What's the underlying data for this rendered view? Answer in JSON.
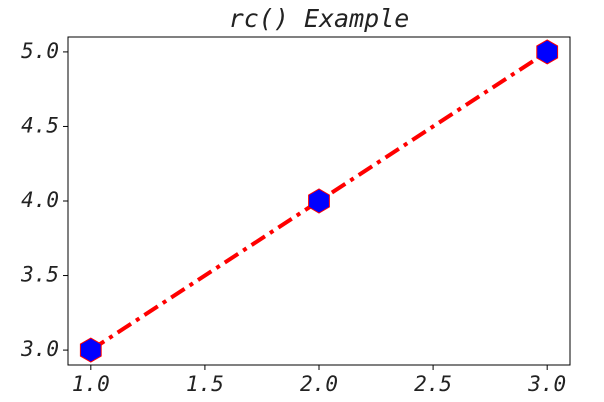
{
  "chart_data": {
    "type": "line",
    "title": "rc() Example",
    "x": [
      1,
      2,
      3
    ],
    "series": [
      {
        "values": [
          3,
          4,
          5
        ],
        "color": "#ff0000",
        "marker_color": "#0000ff",
        "linestyle": "dashdot"
      }
    ],
    "xlim": [
      0.9,
      3.1
    ],
    "ylim": [
      2.9,
      5.1
    ],
    "xticks": [
      {
        "value": 1,
        "label": "1.0"
      },
      {
        "value": 1.5,
        "label": "1.5"
      },
      {
        "value": 2,
        "label": "2.0"
      },
      {
        "value": 2.5,
        "label": "2.5"
      },
      {
        "value": 3,
        "label": "3.0"
      }
    ],
    "yticks": [
      {
        "value": 3,
        "label": "3.0"
      },
      {
        "value": 3.5,
        "label": "3.5"
      },
      {
        "value": 4,
        "label": "4.0"
      },
      {
        "value": 4.5,
        "label": "4.5"
      },
      {
        "value": 5,
        "label": "5.0"
      }
    ],
    "grid": false
  }
}
